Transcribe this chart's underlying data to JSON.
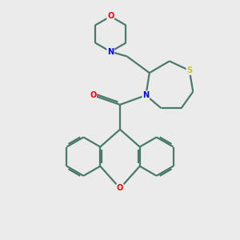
{
  "bg_color": "#ebebeb",
  "atom_colors": {
    "O": "#ff0000",
    "N": "#0000ff",
    "S": "#cccc00",
    "C": "#4a7a6a"
  },
  "bond_color": "#4a7a6a",
  "bond_width": 1.6,
  "figsize": [
    3.0,
    3.0
  ],
  "dpi": 100
}
